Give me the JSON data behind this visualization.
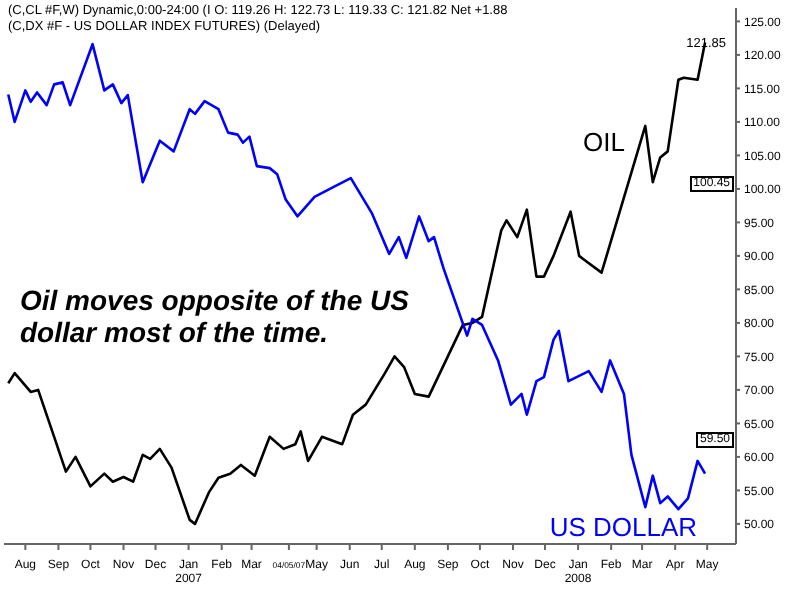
{
  "chart_data": {
    "type": "line",
    "title": "(C,CL #F,W) Dynamic,0:00-24:00 (I  O: 119.26  H: 122.73  L: 119.33  C: 121.82  Net +1.88",
    "subtitle": "(C,DX #F - US DOLLAR INDEX FUTURES)  (Delayed)",
    "annotations": [
      {
        "text": "Oil moves opposite of the US dollar most of the time."
      },
      {
        "text": "121.85",
        "y": 121.85
      },
      "100.45",
      "59.50"
    ],
    "series": [
      {
        "name": "OIL",
        "color": "#000000",
        "x": [
          "2006-07-16",
          "2006-07-22",
          "2006-08-06",
          "2006-08-13",
          "2006-08-28",
          "2006-09-08",
          "2006-09-17",
          "2006-10-01",
          "2006-10-14",
          "2006-10-22",
          "2006-11-01",
          "2006-11-10",
          "2006-11-19",
          "2006-11-26",
          "2006-12-05",
          "2006-12-16",
          "2007-01-02",
          "2007-01-07",
          "2007-01-20",
          "2007-01-29",
          "2007-02-09",
          "2007-02-19",
          "2007-03-04",
          "2007-03-18",
          "2007-03-31",
          "2007-04-11",
          "2007-04-16",
          "2007-04-23",
          "2007-05-06",
          "2007-05-25",
          "2007-06-04",
          "2007-06-16",
          "2007-07-04",
          "2007-07-13",
          "2007-07-22",
          "2007-08-01",
          "2007-08-14",
          "2007-09-15",
          "2007-09-24",
          "2007-10-03",
          "2007-10-21",
          "2007-10-26",
          "2007-11-05",
          "2007-11-14",
          "2007-11-23",
          "2007-11-30",
          "2007-12-09",
          "2007-12-25",
          "2008-01-02",
          "2008-01-07",
          "2008-01-23",
          "2008-03-04",
          "2008-03-11",
          "2008-03-18",
          "2008-03-25",
          "2008-04-04",
          "2008-04-09",
          "2008-04-22",
          "2008-04-29"
        ],
        "values": [
          71,
          72.5,
          69.7,
          70,
          63,
          57.8,
          60,
          55.6,
          57.5,
          56.3,
          57,
          56.3,
          60.3,
          59.7,
          61.2,
          58.4,
          50.6,
          50,
          54.7,
          56.9,
          57.5,
          58.8,
          57.2,
          63,
          61.2,
          61.9,
          63.8,
          59.4,
          63,
          61.9,
          66.3,
          67.8,
          72.5,
          75,
          73.4,
          69.4,
          69,
          79.7,
          80,
          80.9,
          93.8,
          95.3,
          92.8,
          96.9,
          86.9,
          86.9,
          90,
          96.6,
          90,
          89.4,
          87.5,
          109.4,
          101,
          104.7,
          105.6,
          116.3,
          116.6,
          116.3,
          121.85
        ],
        "value_labels": [
          null,
          null,
          null,
          null,
          null,
          null,
          null,
          null,
          null,
          null,
          null,
          null,
          null,
          null,
          null,
          null,
          null,
          null,
          null,
          null,
          null,
          null,
          null,
          null,
          null,
          null,
          null,
          null,
          null,
          null,
          null,
          null,
          null,
          null,
          null,
          null,
          null,
          null,
          null,
          null,
          null,
          null,
          null,
          null,
          null,
          null,
          null,
          null,
          null,
          null,
          null,
          null,
          null,
          null,
          null,
          null,
          null,
          null,
          null
        ]
      },
      {
        "name": "US DOLLAR",
        "color": "#0000ff",
        "x": [
          "2006-07-16",
          "2006-07-22",
          "2006-08-01",
          "2006-08-06",
          "2006-08-12",
          "2006-08-21",
          "2006-08-28",
          "2006-09-05",
          "2006-09-12",
          "2006-10-03",
          "2006-10-14",
          "2006-10-22",
          "2006-10-30",
          "2006-11-05",
          "2006-11-19",
          "2006-12-05",
          "2006-12-18",
          "2007-01-02",
          "2007-01-07",
          "2007-01-16",
          "2007-01-29",
          "2007-02-07",
          "2007-02-16",
          "2007-02-21",
          "2007-02-27",
          "2007-03-06",
          "2007-03-18",
          "2007-03-25",
          "2007-04-02",
          "2007-04-13",
          "2007-04-29",
          "2007-05-17",
          "2007-06-02",
          "2007-06-22",
          "2007-07-08",
          "2007-07-17",
          "2007-07-24",
          "2007-08-05",
          "2007-08-14",
          "2007-08-19",
          "2007-08-28",
          "2007-09-19",
          "2007-09-24",
          "2007-10-03",
          "2007-10-18",
          "2007-10-30",
          "2007-11-09",
          "2007-11-14",
          "2007-11-23",
          "2007-11-30",
          "2007-12-09",
          "2007-12-14",
          "2007-12-23",
          "2008-01-11",
          "2008-01-23",
          "2008-01-31",
          "2008-02-13",
          "2008-02-20",
          "2008-03-04",
          "2008-03-11",
          "2008-03-18",
          "2008-03-25",
          "2008-04-04",
          "2008-04-13",
          "2008-04-22",
          "2008-04-29"
        ],
        "values": [
          114.1,
          110,
          114.7,
          113,
          114.4,
          112.5,
          115.6,
          115.9,
          112.5,
          121.6,
          114.7,
          115.6,
          112.8,
          114,
          101,
          107.2,
          105.6,
          111.9,
          111.2,
          113.1,
          111.9,
          108.4,
          108.1,
          106.9,
          107.8,
          103.4,
          103.1,
          102.2,
          98.4,
          95.9,
          98.8,
          100.3,
          101.6,
          96.3,
          90.3,
          92.8,
          89.7,
          95.9,
          92.2,
          92.8,
          88.1,
          78.1,
          80.6,
          79.7,
          74.4,
          67.8,
          69.4,
          66.3,
          71.3,
          71.9,
          77.5,
          78.8,
          71.3,
          72.8,
          69.7,
          74.4,
          69.4,
          60.3,
          52.5,
          57.2,
          53.1,
          54.1,
          52.2,
          53.8,
          59.4,
          57.5
        ]
      }
    ],
    "xlim": [
      "2006-07-12",
      "2008-05-28"
    ],
    "xticks": [
      {
        "value": "2006-08-01",
        "label": "Aug"
      },
      {
        "value": "2006-09-01",
        "label": "Sep"
      },
      {
        "value": "2006-10-01",
        "label": "Oct"
      },
      {
        "value": "2006-11-01",
        "label": "Nov"
      },
      {
        "value": "2006-12-01",
        "label": "Dec"
      },
      {
        "value": "2007-01-01",
        "label": "Jan 2007"
      },
      {
        "value": "2007-02-01",
        "label": "Feb"
      },
      {
        "value": "2007-03-01",
        "label": "Mar"
      },
      {
        "value": "2007-04-05",
        "label": "04/05/07"
      },
      {
        "value": "2007-05-01",
        "label": "May"
      },
      {
        "value": "2007-06-01",
        "label": "Jun"
      },
      {
        "value": "2007-07-01",
        "label": "Jul"
      },
      {
        "value": "2007-08-01",
        "label": "Aug"
      },
      {
        "value": "2007-09-01",
        "label": "Sep"
      },
      {
        "value": "2007-10-01",
        "label": "Oct"
      },
      {
        "value": "2007-11-01",
        "label": "Nov"
      },
      {
        "value": "2007-12-01",
        "label": "Dec"
      },
      {
        "value": "2008-01-01",
        "label": "Jan 2008"
      },
      {
        "value": "2008-02-01",
        "label": "Feb"
      },
      {
        "value": "2008-03-01",
        "label": "Mar"
      },
      {
        "value": "2008-04-01",
        "label": "Apr"
      },
      {
        "value": "2008-05-01",
        "label": "May"
      }
    ],
    "ylim": [
      47,
      127
    ],
    "yticks": [
      {
        "value": 50,
        "label": "50.00"
      },
      {
        "value": 55,
        "label": "55.00"
      },
      {
        "value": 60,
        "label": "60.00"
      },
      {
        "value": 65,
        "label": "65.00"
      },
      {
        "value": 70,
        "label": "70.00"
      },
      {
        "value": 75,
        "label": "75.00"
      },
      {
        "value": 80,
        "label": "80.00"
      },
      {
        "value": 85,
        "label": "85.00"
      },
      {
        "value": 90,
        "label": "90.00"
      },
      {
        "value": 95,
        "label": "95.00"
      },
      {
        "value": 100,
        "label": "100.00"
      },
      {
        "value": 105,
        "label": "105.00"
      },
      {
        "value": 110,
        "label": "110.00"
      },
      {
        "value": 115,
        "label": "115.00"
      },
      {
        "value": 120,
        "label": "120.00"
      },
      {
        "value": 125,
        "label": "125.00"
      }
    ],
    "grid": false,
    "legend": false,
    "marker": "none",
    "line_style": "solid"
  }
}
